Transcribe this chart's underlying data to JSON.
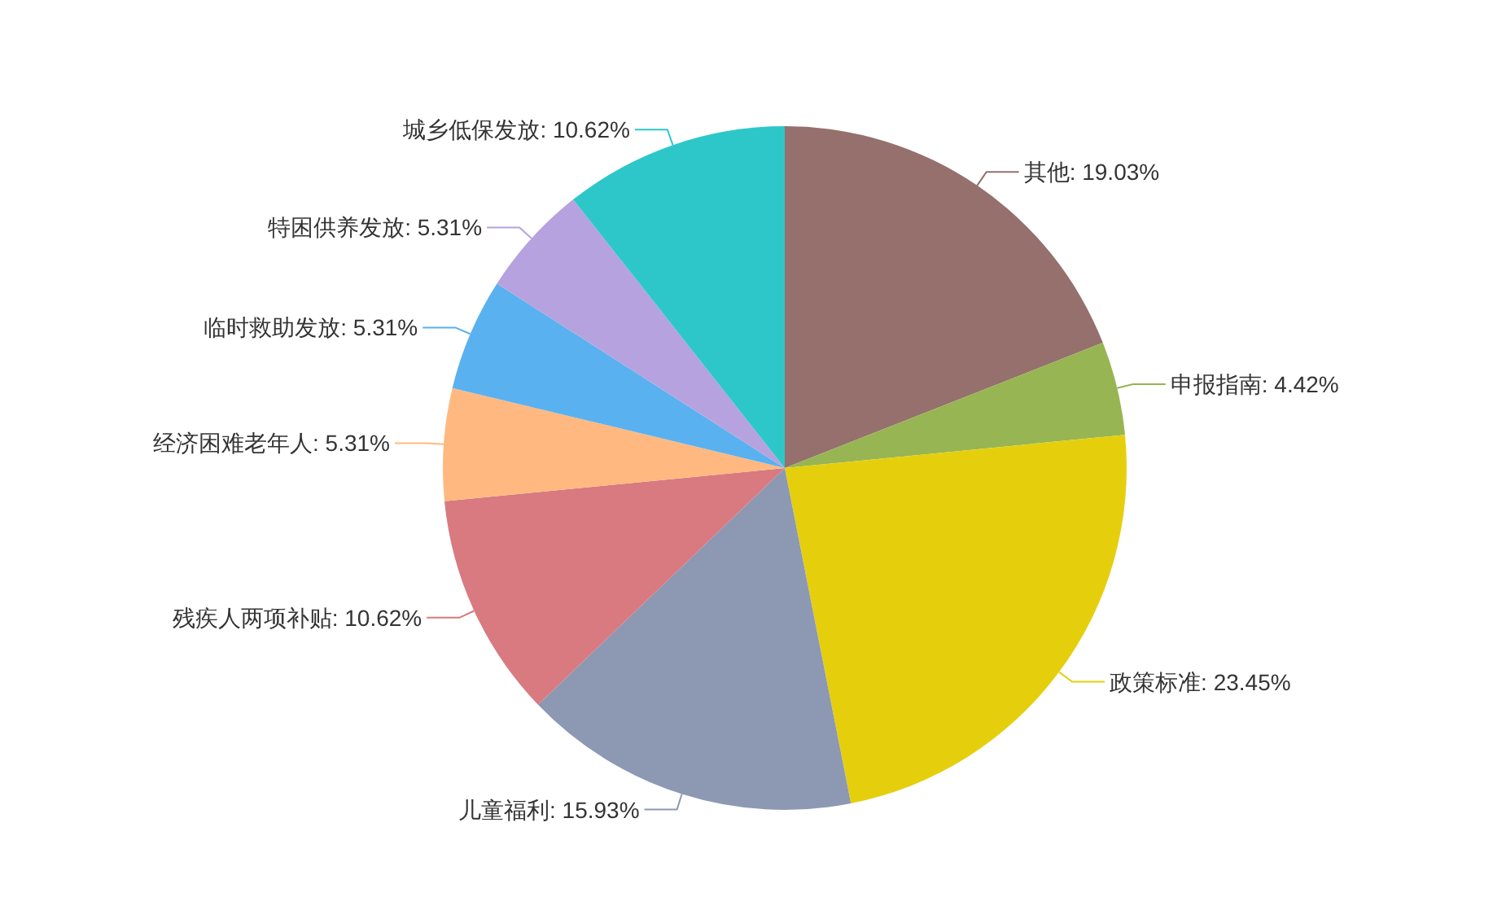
{
  "chart_data": {
    "type": "pie",
    "categories": [
      "其他",
      "申报指南",
      "政策标准",
      "儿童福利",
      "残疾人两项补贴",
      "经济困难老年人",
      "临时救助发放",
      "特困供养发放",
      "城乡低保发放"
    ],
    "values": [
      19.03,
      4.42,
      23.45,
      15.93,
      10.62,
      5.31,
      5.31,
      5.31,
      10.62
    ],
    "value_labels": [
      "19.03%",
      "4.42%",
      "23.45%",
      "15.93%",
      "10.62%",
      "5.31%",
      "5.31%",
      "5.31%",
      "10.62%"
    ],
    "colors": [
      "#95706d",
      "#97b552",
      "#e5cf0d",
      "#8d98b3",
      "#d87a80",
      "#ffb980",
      "#5ab1ef",
      "#b6a2de",
      "#2ec7c9"
    ]
  }
}
